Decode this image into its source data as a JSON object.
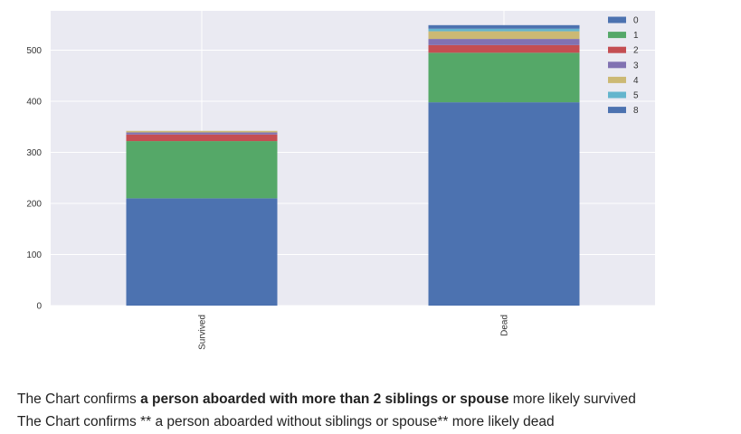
{
  "chart_data": {
    "type": "bar",
    "stacked": true,
    "categories": [
      "Survived",
      "Dead"
    ],
    "series": [
      {
        "name": "0",
        "values": [
          210,
          398
        ],
        "color": "#4c72b0"
      },
      {
        "name": "1",
        "values": [
          112,
          97
        ],
        "color": "#55a868"
      },
      {
        "name": "2",
        "values": [
          13,
          15
        ],
        "color": "#c44e52"
      },
      {
        "name": "3",
        "values": [
          4,
          12
        ],
        "color": "#8172b2"
      },
      {
        "name": "4",
        "values": [
          3,
          15
        ],
        "color": "#ccb974"
      },
      {
        "name": "5",
        "values": [
          0,
          5
        ],
        "color": "#64b5cd"
      },
      {
        "name": "8",
        "values": [
          0,
          7
        ],
        "color": "#4c72b0"
      }
    ],
    "yticks": [
      0,
      100,
      200,
      300,
      400,
      500
    ],
    "ylim": [
      0,
      577
    ],
    "grid": true,
    "legend_position": "top-right",
    "background_color": "#eaeaf2",
    "grid_color": "#ffffff"
  },
  "captions": [
    {
      "pre": "The Chart confirms ",
      "bold": "a person aboarded with more than 2 siblings or spouse",
      "post": " more likely survived"
    },
    {
      "pre": "The Chart confirms ** a person aboarded without siblings or spouse** more likely dead",
      "bold": "",
      "post": ""
    }
  ]
}
